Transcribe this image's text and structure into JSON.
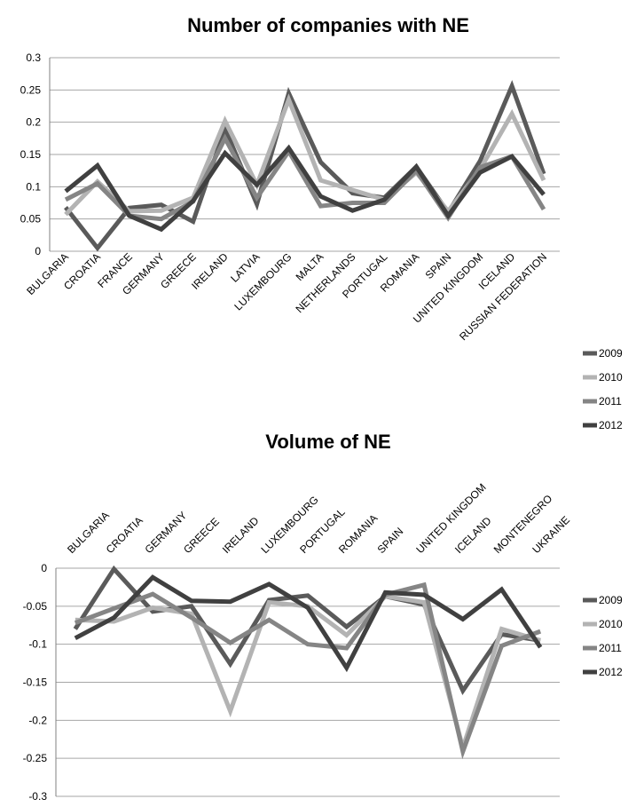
{
  "chart_data": [
    {
      "type": "line",
      "title": "Number of companies with NE",
      "categories": [
        "BULGARIA",
        "CROATIA",
        "FRANCE",
        "GERMANY",
        "GREECE",
        "IRELAND",
        "LATVIA",
        "LUXEMBOURG",
        "MALTA",
        "NETHERLANDS",
        "PORTUGAL",
        "ROMANIA",
        "SPAIN",
        "UNITED KINGDOM",
        "ICELAND",
        "RUSSIAN FEDERATION"
      ],
      "ylim": [
        0,
        0.3
      ],
      "yticks": [
        "0",
        "0.05",
        "0.1",
        "0.15",
        "0.2",
        "0.25",
        "0.3"
      ],
      "grid": true,
      "legend": "right",
      "series": [
        {
          "name": "2009",
          "color": "#5a5a5a",
          "values": [
            0.068,
            0.005,
            0.067,
            0.072,
            0.046,
            0.19,
            0.073,
            0.245,
            0.138,
            0.09,
            0.083,
            0.131,
            0.06,
            0.14,
            0.256,
            0.12
          ]
        },
        {
          "name": "2010",
          "color": "#b3b3b3",
          "values": [
            0.057,
            0.108,
            0.062,
            0.063,
            0.083,
            0.202,
            0.103,
            0.235,
            0.11,
            0.095,
            0.08,
            0.122,
            0.062,
            0.127,
            0.213,
            0.11
          ]
        },
        {
          "name": "2011",
          "color": "#858585",
          "values": [
            0.08,
            0.105,
            0.055,
            0.05,
            0.077,
            0.175,
            0.083,
            0.155,
            0.07,
            0.075,
            0.075,
            0.125,
            0.052,
            0.13,
            0.147,
            0.065
          ]
        },
        {
          "name": "2012",
          "color": "#404040",
          "values": [
            0.093,
            0.133,
            0.055,
            0.034,
            0.078,
            0.152,
            0.103,
            0.16,
            0.085,
            0.063,
            0.08,
            0.131,
            0.055,
            0.122,
            0.147,
            0.088
          ]
        }
      ]
    },
    {
      "type": "line",
      "title": "Volume of NE",
      "categories": [
        "BULGARIA",
        "CROATIA",
        "GERMANY",
        "GREECE",
        "IRELAND",
        "LUXEMBOURG",
        "PORTUGAL",
        "ROMANIA",
        "SPAIN",
        "UNITED KINGDOM",
        "ICELAND",
        "MONTENEGRO",
        "UKRAINE"
      ],
      "ylim": [
        -0.3,
        0
      ],
      "yticks": [
        "0",
        "-0.05",
        "-0.1",
        "-0.15",
        "-0.2",
        "-0.25",
        "-0.3"
      ],
      "grid": true,
      "legend": "right",
      "series": [
        {
          "name": "2009",
          "color": "#5a5a5a",
          "values": [
            -0.08,
            -0.001,
            -0.057,
            -0.05,
            -0.126,
            -0.042,
            -0.036,
            -0.077,
            -0.037,
            -0.048,
            -0.161,
            -0.087,
            -0.095
          ]
        },
        {
          "name": "2010",
          "color": "#b3b3b3",
          "values": [
            -0.068,
            -0.07,
            -0.052,
            -0.06,
            -0.188,
            -0.045,
            -0.05,
            -0.088,
            -0.037,
            -0.045,
            -0.236,
            -0.08,
            -0.095
          ]
        },
        {
          "name": "2011",
          "color": "#858585",
          "values": [
            -0.072,
            -0.053,
            -0.034,
            -0.065,
            -0.098,
            -0.068,
            -0.1,
            -0.105,
            -0.035,
            -0.022,
            -0.241,
            -0.102,
            -0.083
          ]
        },
        {
          "name": "2012",
          "color": "#404040",
          "values": [
            -0.092,
            -0.065,
            -0.012,
            -0.043,
            -0.044,
            -0.021,
            -0.052,
            -0.131,
            -0.032,
            -0.035,
            -0.067,
            -0.028,
            -0.104
          ]
        }
      ]
    }
  ]
}
